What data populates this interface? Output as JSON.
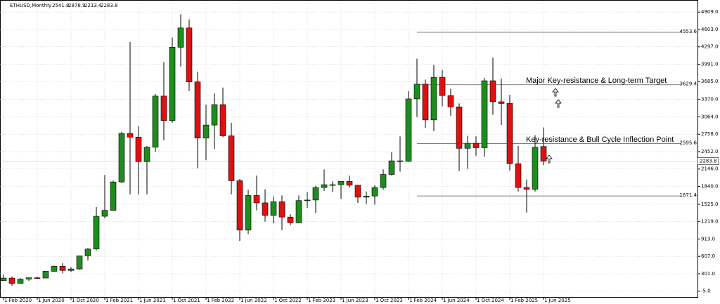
{
  "chart_data": {
    "type": "candlestick",
    "title": "ETHUSD,Monthly",
    "categories": [
      "1 Feb 2020",
      null,
      null,
      null,
      "1 Jun 2020",
      null,
      null,
      null,
      "1 Oct 2020",
      null,
      null,
      null,
      "1 Feb 2021",
      null,
      null,
      null,
      "1 Jun 2021",
      null,
      null,
      null,
      "1 Oct 2021",
      null,
      null,
      null,
      "1 Feb 2022",
      null,
      null,
      null,
      "1 Jun 2022",
      null,
      null,
      null,
      "1 Oct 2022",
      null,
      null,
      null,
      "1 Feb 2023",
      null,
      null,
      null,
      "1 Jun 2023",
      null,
      null,
      null,
      "1 Oct 2023",
      null,
      null,
      null,
      "1 Feb 2024",
      null,
      null,
      null,
      "1 Jun 2024",
      null,
      null,
      null,
      "1 Oct 2024",
      null,
      null,
      null,
      "1 Feb 2025",
      null,
      null,
      null,
      "1 Jun 2025"
    ],
    "series": [
      {
        "name": "ETHUSD",
        "up_color": "#1e8c1e",
        "down_color": "#e01010",
        "open": [
          180,
          226,
          133,
          207,
          231,
          226,
          345,
          434,
          360,
          386,
          617,
          737,
          1314,
          1418,
          1918,
          2773,
          2707,
          2275,
          2530,
          3430,
          3000,
          4290,
          4630,
          3680,
          2690,
          2920,
          3280,
          2730,
          1940,
          1070,
          1680,
          1550,
          1330,
          1570,
          1300,
          1200,
          1590,
          1600,
          1820,
          1870,
          1870,
          1930,
          1860,
          1650,
          1670,
          1820,
          2050,
          2290,
          2280,
          3380,
          3640,
          3010,
          3760,
          3440,
          3240,
          2510,
          2600,
          2520,
          3700,
          3330,
          3300,
          2240,
          1820,
          1790,
          2541.8
        ],
        "high": [
          288,
          253,
          227,
          227,
          250,
          350,
          445,
          488,
          420,
          622,
          755,
          1476,
          2040,
          1943,
          2800,
          4380,
          2900,
          2550,
          3470,
          4030,
          4460,
          4870,
          4780,
          3860,
          3280,
          3480,
          3580,
          2960,
          1970,
          1780,
          2030,
          1790,
          1660,
          1680,
          1350,
          1680,
          1740,
          1850,
          2140,
          1930,
          1930,
          2030,
          1870,
          1750,
          1860,
          2140,
          2440,
          2720,
          3520,
          4090,
          3720,
          3980,
          3890,
          3560,
          3300,
          2730,
          2720,
          3750,
          4110,
          3740,
          3450,
          2550,
          1960,
          2740,
          2878.9
        ],
        "low": [
          178,
          90,
          128,
          177,
          216,
          223,
          336,
          308,
          335,
          373,
          536,
          714,
          1281,
          1430,
          1900,
          1700,
          1700,
          1700,
          2450,
          2650,
          2960,
          3950,
          3520,
          2160,
          2300,
          2500,
          2710,
          1700,
          880,
          1000,
          1420,
          1220,
          1190,
          1070,
          1160,
          1190,
          1460,
          1370,
          1760,
          1740,
          1620,
          1820,
          1550,
          1530,
          1520,
          1780,
          2030,
          2100,
          2270,
          3060,
          2870,
          2810,
          3250,
          3080,
          2110,
          2150,
          2380,
          2360,
          3100,
          2920,
          2120,
          1750,
          1380,
          1750,
          2213.4
        ],
        "close": [
          226,
          133,
          207,
          231,
          226,
          345,
          434,
          360,
          386,
          617,
          737,
          1314,
          1418,
          1918,
          2773,
          2707,
          2275,
          2530,
          3430,
          3000,
          4290,
          4630,
          3680,
          2690,
          2920,
          3280,
          2730,
          1940,
          1070,
          1680,
          1550,
          1330,
          1570,
          1300,
          1200,
          1590,
          1600,
          1820,
          1870,
          1870,
          1930,
          1860,
          1650,
          1670,
          1820,
          2050,
          2290,
          2280,
          3380,
          3640,
          3010,
          3760,
          3440,
          3240,
          2510,
          2600,
          2520,
          3700,
          3330,
          3300,
          2240,
          1820,
          1790,
          2530,
          2283.8
        ]
      }
    ],
    "levels": [
      4553.6,
      3629.4,
      2595.6,
      1671.4
    ],
    "current_price": 2283.8,
    "annotations": [
      "Major Key-resistance & Long-term Target",
      "Key-resistance & Bull Cycle Inflection Point"
    ],
    "ylim": [
      -107,
      5060
    ],
    "yticks": [
      {
        "value": 4909,
        "label": "4909.0"
      },
      {
        "value": 4603,
        "label": "4603.0"
      },
      {
        "value": 4297,
        "label": "4297.0"
      },
      {
        "value": 3991,
        "label": "3991.0"
      },
      {
        "value": 3685,
        "label": "3685.0"
      },
      {
        "value": 3370,
        "label": "3370.0"
      },
      {
        "value": 3064,
        "label": "3064.0"
      },
      {
        "value": 2758,
        "label": "2758.0"
      },
      {
        "value": 2452,
        "label": "2452.0"
      },
      {
        "value": 2146,
        "label": "2146.0"
      },
      {
        "value": 1840,
        "label": "1840.0"
      },
      {
        "value": 1525,
        "label": "1525.0"
      },
      {
        "value": 1219,
        "label": "1219.0"
      },
      {
        "value": 913,
        "label": "913.0"
      },
      {
        "value": 607,
        "label": "607.0"
      },
      {
        "value": 301,
        "label": "301.0"
      },
      {
        "value": -5,
        "label": "-5.0"
      }
    ],
    "grid": true
  }
}
